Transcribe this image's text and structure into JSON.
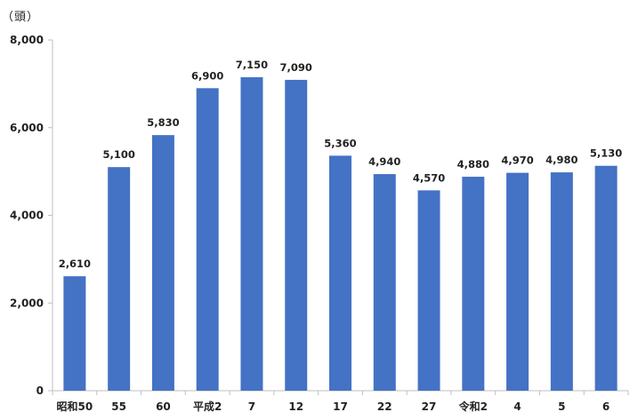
{
  "chart_data": {
    "type": "bar",
    "unit_label": "（頭）",
    "categories": [
      "昭和50",
      "55",
      "60",
      "平成2",
      "7",
      "12",
      "17",
      "22",
      "27",
      "令和2",
      "4",
      "5",
      "6"
    ],
    "values": [
      2610,
      5100,
      5830,
      6900,
      7150,
      7090,
      5360,
      4940,
      4570,
      4880,
      4970,
      4980,
      5130
    ],
    "value_labels": [
      "2,610",
      "5,100",
      "5,830",
      "6,900",
      "7,150",
      "7,090",
      "5,360",
      "4,940",
      "4,570",
      "4,880",
      "4,970",
      "4,980",
      "5,130"
    ],
    "yticks": [
      0,
      2000,
      4000,
      6000,
      8000
    ],
    "ytick_labels": [
      "0",
      "2,000",
      "4,000",
      "6,000",
      "8,000"
    ],
    "ylim": [
      0,
      8000
    ],
    "grid": false,
    "legend": "none",
    "colors": {
      "bar": "#4472C4",
      "axis": "#BFBFBF",
      "text": "#222222"
    }
  }
}
